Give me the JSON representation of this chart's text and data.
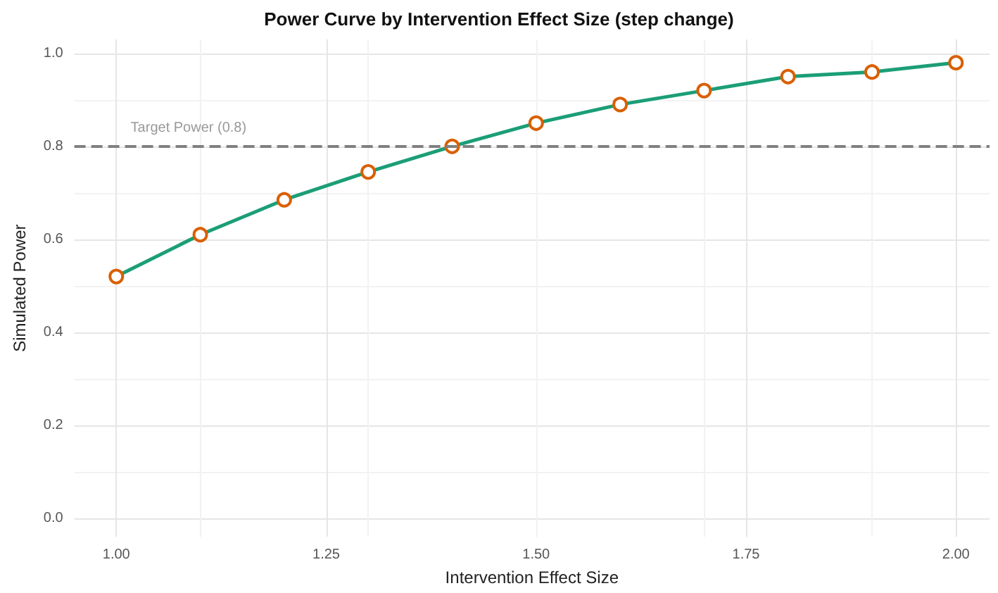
{
  "chart_data": {
    "type": "line",
    "title": "Power Curve by Intervention Effect Size (step change)",
    "xlabel": "Intervention Effect Size",
    "ylabel": "Simulated Power",
    "x": [
      1.0,
      1.1,
      1.2,
      1.3,
      1.4,
      1.5,
      1.6,
      1.7,
      1.8,
      1.9,
      2.0
    ],
    "series": [
      {
        "color": "#1b9e77",
        "values": [
          0.52,
          0.61,
          0.685,
          0.745,
          0.8,
          0.85,
          0.89,
          0.92,
          0.95,
          0.96,
          0.98
        ]
      }
    ],
    "xlim": [
      0.95,
      2.04
    ],
    "xticks": [
      {
        "value": 1,
        "label": "1.00"
      },
      {
        "value": 1.25,
        "label": "1.25"
      },
      {
        "value": 1.5,
        "label": "1.50"
      },
      {
        "value": 1.75,
        "label": "1.75"
      },
      {
        "value": 2,
        "label": "2.00"
      }
    ],
    "ylim": [
      -0.04,
      1.03
    ],
    "yticks": [
      {
        "value": 0,
        "label": "0.0"
      },
      {
        "value": 0.2,
        "label": "0.2"
      },
      {
        "value": 0.4,
        "label": "0.4"
      },
      {
        "value": 0.6,
        "label": "0.6"
      },
      {
        "value": 0.8,
        "label": "0.8"
      },
      {
        "value": 1,
        "label": "1.0"
      }
    ],
    "ref_lines": [
      {
        "axis": "y",
        "value": 0.8,
        "label": "Target Power (0.8)",
        "color": "#808080",
        "line_style": "dashed"
      }
    ],
    "grid": true,
    "marker": "circle",
    "line_style": "solid"
  }
}
